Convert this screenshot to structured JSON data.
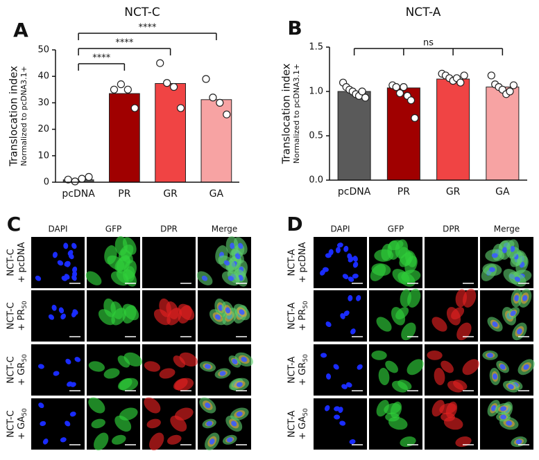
{
  "chart_data": [
    {
      "type": "bar",
      "panel_label": "A",
      "title": "NCT-C",
      "ylabel": "Translocation index",
      "ylabel_sub": "Normalized to pcDNA3.1+",
      "categories": [
        "pcDNA",
        "PR",
        "GR",
        "GA"
      ],
      "values": [
        0.9,
        33.5,
        37.3,
        31.2
      ],
      "colors": [
        "#5a5a5a",
        "#a00000",
        "#f04444",
        "#f7a3a3"
      ],
      "points": [
        [
          1,
          0.3,
          1.3,
          2
        ],
        [
          35,
          37,
          35,
          28
        ],
        [
          45,
          37.5,
          36,
          28
        ],
        [
          39,
          32,
          30,
          25.6
        ]
      ],
      "ylim": [
        0,
        50
      ],
      "yticks": [
        0,
        10,
        20,
        30,
        40,
        50
      ],
      "comparisons": [
        {
          "label": "****",
          "between": [
            0,
            1
          ]
        },
        {
          "label": "****",
          "between": [
            0,
            2
          ]
        },
        {
          "label": "****",
          "between": [
            0,
            3
          ]
        }
      ]
    },
    {
      "type": "bar",
      "panel_label": "B",
      "title": "NCT-A",
      "ylabel": "Translocation index",
      "ylabel_sub": "Normalized to pcDNA3.1+",
      "categories": [
        "pcDNA",
        "PR",
        "GR",
        "GA"
      ],
      "values": [
        1.0,
        1.04,
        1.14,
        1.05
      ],
      "colors": [
        "#5a5a5a",
        "#a00000",
        "#f04444",
        "#f7a3a3"
      ],
      "points": [
        [
          1.1,
          1.05,
          1.02,
          1.0,
          0.97,
          0.95,
          1.0,
          0.93
        ],
        [
          1.07,
          1.05,
          0.98,
          1.05,
          0.95,
          0.9,
          0.7
        ],
        [
          1.2,
          1.18,
          1.15,
          1.12,
          1.15,
          1.1,
          1.18
        ],
        [
          1.18,
          1.08,
          1.05,
          1.02,
          0.97,
          1.0,
          1.07
        ]
      ],
      "ylim": [
        0,
        1.5
      ],
      "yticks": [
        {
          "value": 0,
          "label": "0.0"
        },
        0.5,
        {
          "value": 1,
          "label": "1.0"
        },
        1.5
      ],
      "comparisons": [
        {
          "label": "ns",
          "between": [
            0,
            1,
            2,
            3
          ]
        }
      ]
    }
  ],
  "panels": [
    {
      "label": "C",
      "columns": [
        "DAPI",
        "GFP",
        "DPR",
        "Merge"
      ],
      "rows": [
        {
          "line1": "NCT-C",
          "line2": "+ pcDNA"
        },
        {
          "line1": "NCT-C",
          "line2": "+ PR",
          "sub": "50"
        },
        {
          "line1": "NCT-C",
          "line2": "+ GR",
          "sub": "50"
        },
        {
          "line1": "NCT-C",
          "line2": "+ GA",
          "sub": "50"
        }
      ]
    },
    {
      "label": "D",
      "columns": [
        "DAPI",
        "GFP",
        "DPR",
        "Merge"
      ],
      "rows": [
        {
          "line1": "NCT-A",
          "line2": "+ pcDNA"
        },
        {
          "line1": "NCT-A",
          "line2": "+ PR",
          "sub": "50"
        },
        {
          "line1": "NCT-A",
          "line2": "+ GR",
          "sub": "50"
        },
        {
          "line1": "NCT-A",
          "line2": "+ GA",
          "sub": "50"
        }
      ]
    }
  ]
}
